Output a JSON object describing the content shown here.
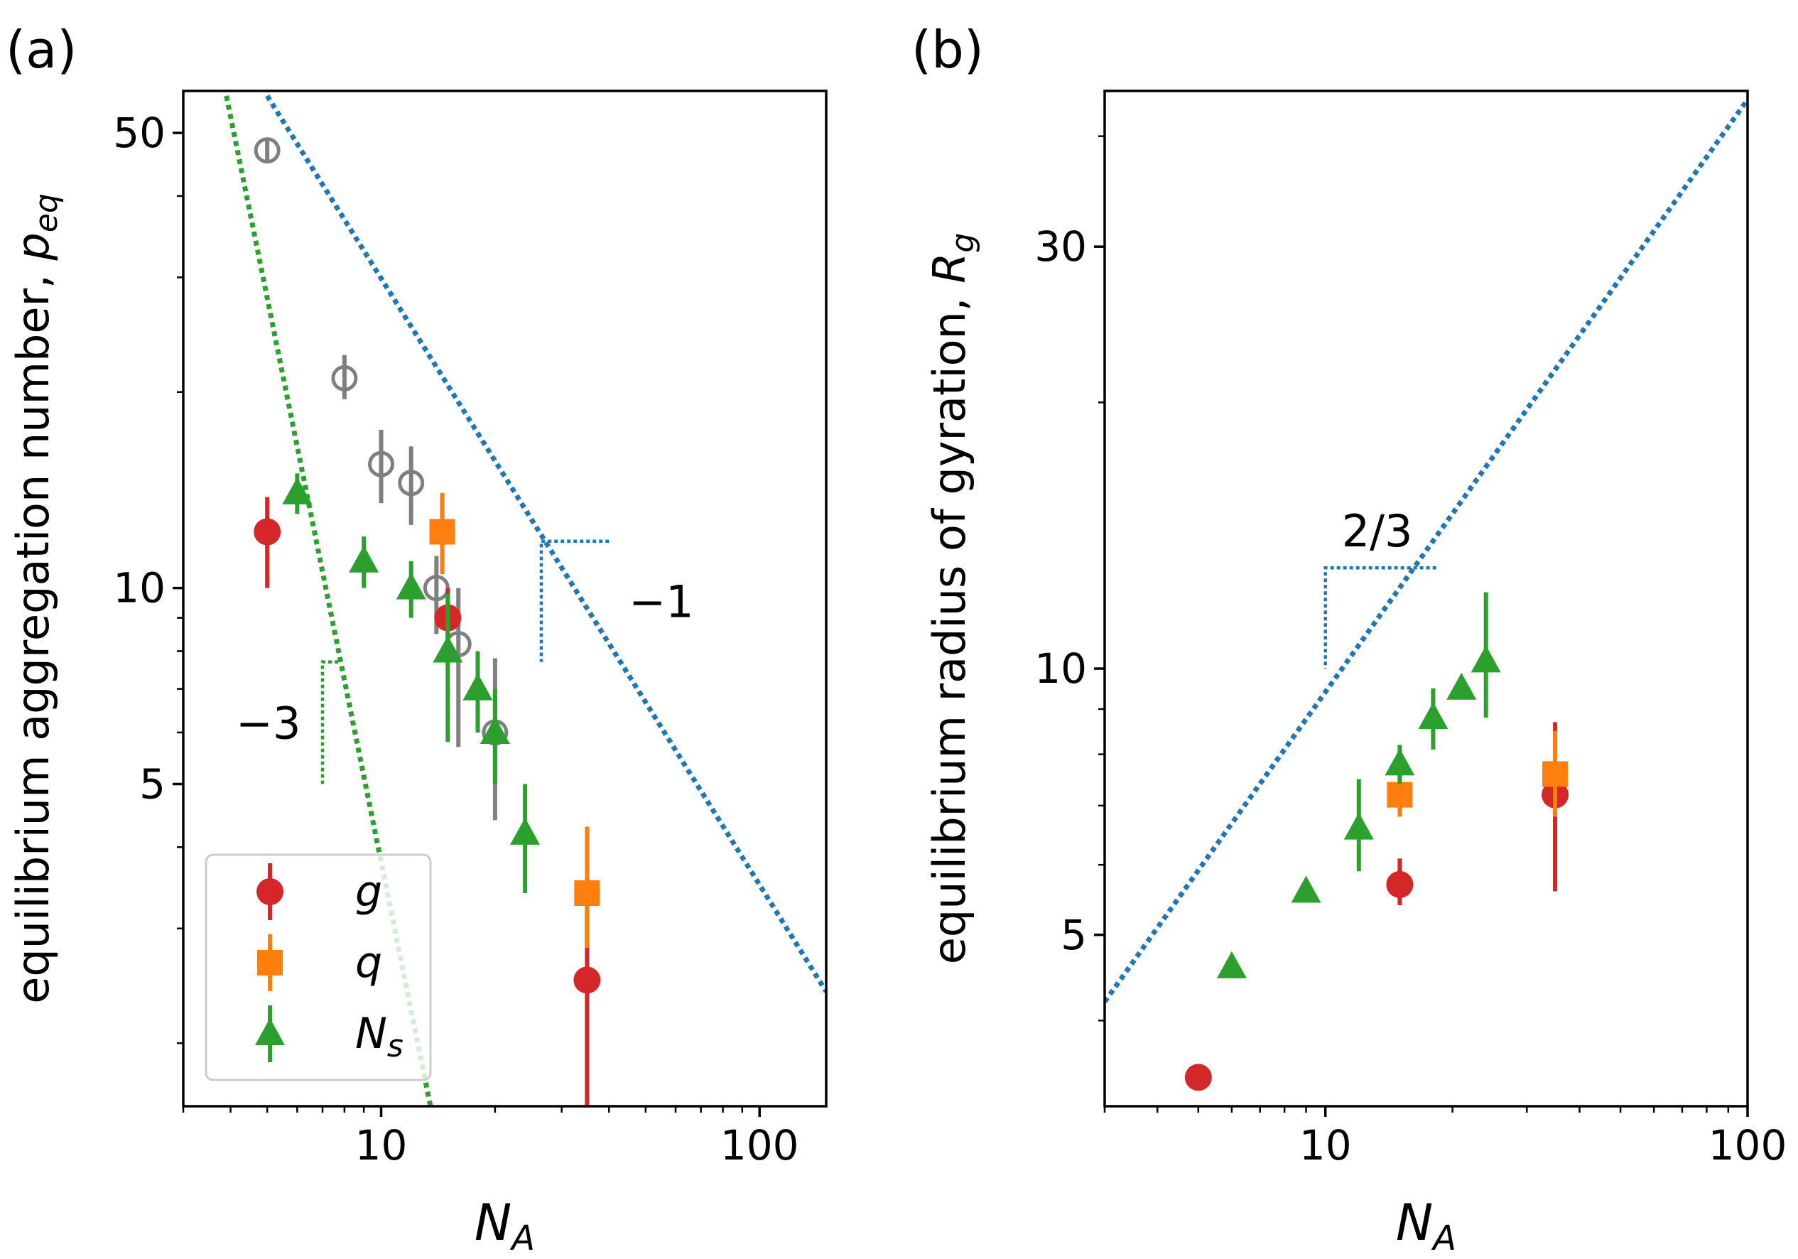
{
  "colors": {
    "red": "#d62728",
    "orange": "#ff7f0e",
    "green": "#2ca02c",
    "blue": "#1f77b4",
    "gray": "#7f7f7f"
  },
  "chart_data": [
    {
      "type": "scatter",
      "panel_label": "(a)",
      "xlabel": "N",
      "xlabel_sub": "A",
      "ylabel": "equilibrium aggregation number, ",
      "ylabel_var": "p",
      "ylabel_sub": "eq",
      "x_scale": "log",
      "y_scale": "log",
      "xlim": [
        3,
        150
      ],
      "ylim": [
        1.6,
        58
      ],
      "x_ticks": [
        {
          "value": 10,
          "label": "10"
        },
        {
          "value": 100,
          "label": "100"
        }
      ],
      "y_ticks": [
        {
          "value": 5,
          "label": "5"
        },
        {
          "value": 10,
          "label": "10"
        },
        {
          "value": 50,
          "label": "50"
        }
      ],
      "legend": {
        "placement": "lower-left",
        "entries": [
          {
            "label": "g",
            "sub": "",
            "marker": "circle",
            "color_key": "red"
          },
          {
            "label": "q",
            "sub": "",
            "marker": "square",
            "color_key": "orange"
          },
          {
            "label": "N",
            "sub": "s",
            "marker": "triangle",
            "color_key": "green"
          }
        ]
      },
      "series": [
        {
          "key": "gray_open",
          "marker": "open-circle",
          "color_key": "gray",
          "points": [
            {
              "x": 5,
              "y": 47,
              "lo": 45,
              "hi": 49
            },
            {
              "x": 8,
              "y": 21,
              "lo": 19.5,
              "hi": 22.8
            },
            {
              "x": 10,
              "y": 15.5,
              "lo": 13.5,
              "hi": 17.5
            },
            {
              "x": 12,
              "y": 14.5,
              "lo": 12.5,
              "hi": 16.5
            },
            {
              "x": 14,
              "y": 10,
              "lo": 8.5,
              "hi": 11.2
            },
            {
              "x": 16,
              "y": 8.2,
              "lo": 5.7,
              "hi": 10
            },
            {
              "x": 20,
              "y": 6,
              "lo": 4.4,
              "hi": 7.8
            }
          ]
        },
        {
          "key": "g",
          "marker": "circle",
          "color_key": "red",
          "points": [
            {
              "x": 5,
              "y": 12.2,
              "lo": 10,
              "hi": 13.8
            },
            {
              "x": 15,
              "y": 9,
              "lo": 8,
              "hi": 10
            },
            {
              "x": 35,
              "y": 2.5,
              "lo": 1.6,
              "hi": 3.3
            }
          ]
        },
        {
          "key": "q",
          "marker": "square",
          "color_key": "orange",
          "points": [
            {
              "x": 14.5,
              "y": 12.2,
              "lo": 10.5,
              "hi": 14
            },
            {
              "x": 35,
              "y": 3.4,
              "lo": 2.8,
              "hi": 4.3
            }
          ]
        },
        {
          "key": "Ns",
          "marker": "triangle",
          "color_key": "green",
          "points": [
            {
              "x": 6,
              "y": 14,
              "lo": 13,
              "hi": 15
            },
            {
              "x": 9,
              "y": 11,
              "lo": 10,
              "hi": 12
            },
            {
              "x": 12,
              "y": 10,
              "lo": 9,
              "hi": 11
            },
            {
              "x": 15,
              "y": 8,
              "lo": 5.8,
              "hi": 9.8
            },
            {
              "x": 18,
              "y": 7,
              "lo": 6,
              "hi": 8
            },
            {
              "x": 20,
              "y": 6,
              "lo": 5,
              "hi": 7
            },
            {
              "x": 24,
              "y": 4.2,
              "lo": 3.4,
              "hi": 5
            }
          ]
        }
      ],
      "guides": [
        {
          "color_key": "blue",
          "from": [
            5,
            57
          ],
          "to": [
            150,
            2.4
          ]
        },
        {
          "color_key": "green",
          "from": [
            3.9,
            57
          ],
          "to": [
            13.5,
            1.6
          ]
        }
      ],
      "slope_markers": [
        {
          "label": "−1",
          "color_key": "blue",
          "corner": [
            26.5,
            11.8
          ],
          "x2": 40,
          "y2": 7.7
        },
        {
          "label": "−3",
          "color_key": "green",
          "corner": [
            7,
            7.7
          ],
          "x2": 7.7,
          "y2": 5
        }
      ]
    },
    {
      "type": "scatter",
      "panel_label": "(b)",
      "xlabel": "N",
      "xlabel_sub": "A",
      "ylabel": "equilibrium radius of gyration, ",
      "ylabel_var": "R",
      "ylabel_sub": "g",
      "x_scale": "log",
      "y_scale": "log",
      "xlim": [
        3,
        100
      ],
      "ylim": [
        3.2,
        45
      ],
      "x_ticks": [
        {
          "value": 10,
          "label": "10"
        },
        {
          "value": 100,
          "label": "100"
        }
      ],
      "y_ticks": [
        {
          "value": 5,
          "label": "5"
        },
        {
          "value": 10,
          "label": "10"
        },
        {
          "value": 30,
          "label": "30"
        }
      ],
      "series": [
        {
          "key": "g",
          "marker": "circle",
          "color_key": "red",
          "points": [
            {
              "x": 5,
              "y": 3.45,
              "lo": 3.45,
              "hi": 3.45
            },
            {
              "x": 15,
              "y": 5.7,
              "lo": 5.4,
              "hi": 6.1
            },
            {
              "x": 35,
              "y": 7.2,
              "lo": 5.6,
              "hi": 8.7
            }
          ]
        },
        {
          "key": "q",
          "marker": "square",
          "color_key": "orange",
          "points": [
            {
              "x": 15,
              "y": 7.2,
              "lo": 6.8,
              "hi": 7.8
            },
            {
              "x": 35,
              "y": 7.6,
              "lo": 6.8,
              "hi": 8.5
            }
          ]
        },
        {
          "key": "Ns",
          "marker": "triangle",
          "color_key": "green",
          "points": [
            {
              "x": 6,
              "y": 4.6,
              "lo": 4.6,
              "hi": 4.6
            },
            {
              "x": 9,
              "y": 5.6,
              "lo": 5.6,
              "hi": 5.6
            },
            {
              "x": 12,
              "y": 6.6,
              "lo": 5.9,
              "hi": 7.5
            },
            {
              "x": 15,
              "y": 7.8,
              "lo": 7.4,
              "hi": 8.2
            },
            {
              "x": 18,
              "y": 8.8,
              "lo": 8.1,
              "hi": 9.5
            },
            {
              "x": 21,
              "y": 9.5,
              "lo": 9.3,
              "hi": 9.7
            },
            {
              "x": 24,
              "y": 10.2,
              "lo": 8.8,
              "hi": 12.2
            }
          ]
        }
      ],
      "guides": [
        {
          "color_key": "blue",
          "from": [
            3,
            4.2
          ],
          "to": [
            100,
            44
          ]
        }
      ],
      "slope_markers": [
        {
          "label": "2/3",
          "color_key": "blue",
          "corner": [
            10,
            13
          ],
          "x2": 18.3,
          "y2": 10
        }
      ]
    }
  ]
}
